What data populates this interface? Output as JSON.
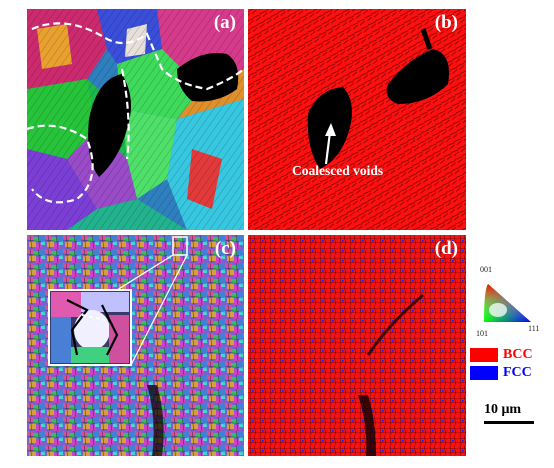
{
  "panels": {
    "a": {
      "label": "(a)"
    },
    "b": {
      "label": "(b)"
    },
    "c": {
      "label": "(c)"
    },
    "d": {
      "label": "(d)"
    }
  },
  "annotation": {
    "text": "Coalesced voids"
  },
  "ipf_key": {
    "top": "001",
    "left": "101",
    "right": "111"
  },
  "phase_legend": [
    {
      "label": "BCC",
      "color": "#ff0000",
      "text_color": "#ff0000"
    },
    {
      "label": "FCC",
      "color": "#0000ff",
      "text_color": "#0000ff"
    }
  ],
  "scalebar": {
    "label": "10 μm"
  },
  "colors": {
    "bcc": "#ff0000",
    "fcc": "#1a1aff",
    "void": "#000000"
  }
}
